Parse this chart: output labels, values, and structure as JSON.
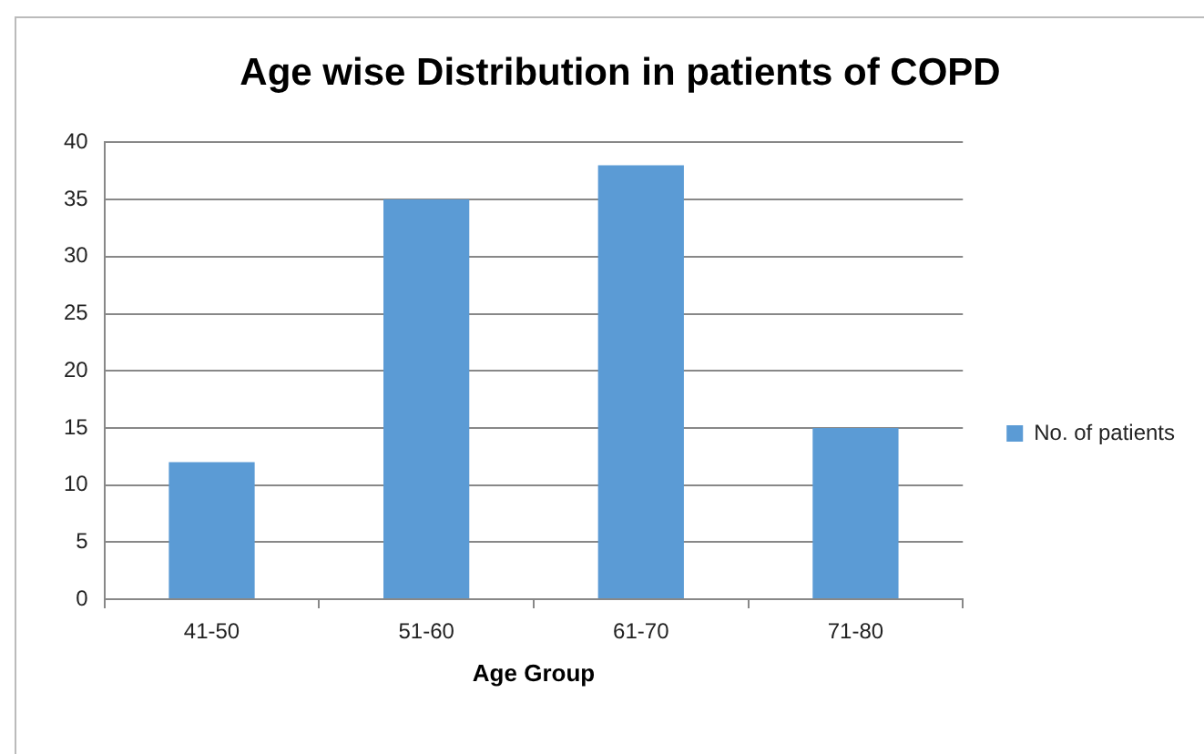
{
  "chart_data": {
    "type": "bar",
    "title": "Age wise Distribution in patients of COPD",
    "xlabel": "Age Group",
    "categories": [
      "41-50",
      "51-60",
      "61-70",
      "71-80"
    ],
    "series": [
      {
        "name": "No. of patients",
        "color": "#5b9bd5",
        "values": [
          12,
          35,
          38,
          15
        ]
      }
    ],
    "ylim": [
      0,
      40
    ],
    "yticks": [
      0,
      5,
      10,
      15,
      20,
      25,
      30,
      35,
      40
    ],
    "grid": "y",
    "legend": "right"
  }
}
